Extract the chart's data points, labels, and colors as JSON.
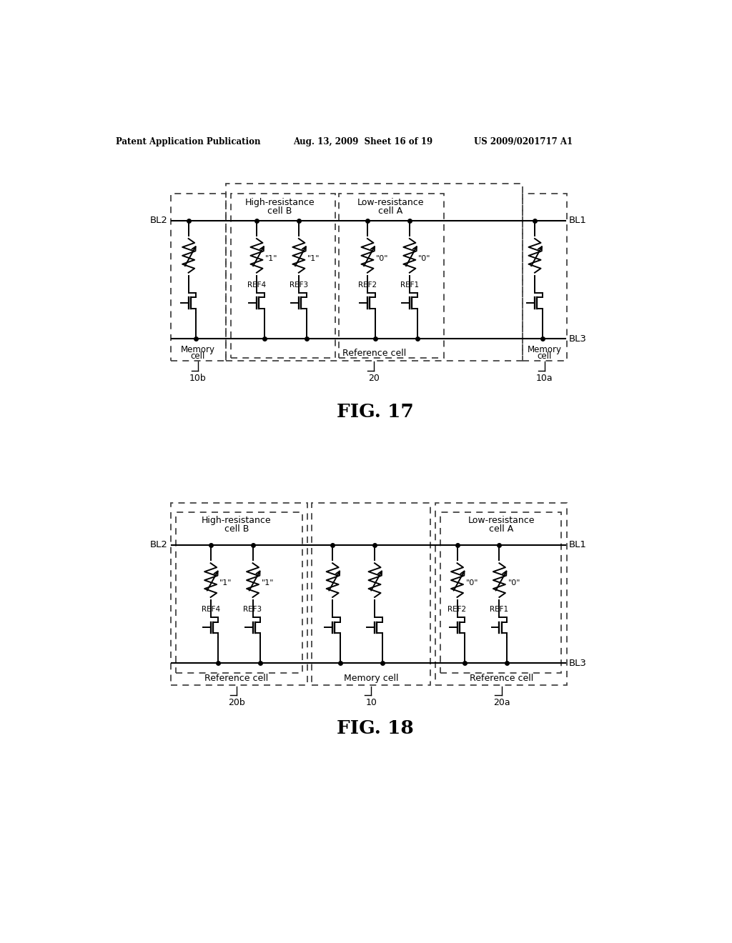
{
  "bg_color": "#ffffff",
  "text_color": "#000000",
  "header_left": "Patent Application Publication",
  "header_mid": "Aug. 13, 2009  Sheet 16 of 19",
  "header_right": "US 2009/0201717 A1",
  "line_color": "#000000",
  "dash_color": "#444444"
}
